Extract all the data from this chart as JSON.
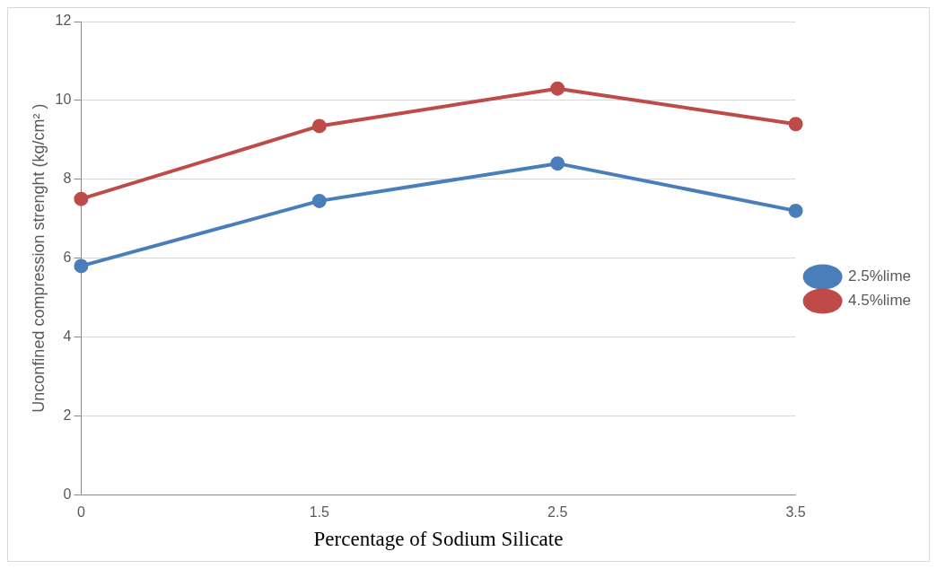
{
  "chart_data": {
    "type": "line",
    "xlabel": "Percentage of Sodium Silicate",
    "ylabel": "Unconfined compression strenght (kg/cm² )",
    "categories": [
      "0",
      "1.5",
      "2.5",
      "3.5"
    ],
    "series": [
      {
        "name": "2.5%lime",
        "color": "#4a7ebb",
        "values": [
          5.8,
          7.45,
          8.4,
          7.2
        ]
      },
      {
        "name": "4.5%lime",
        "color": "#be4b48",
        "values": [
          7.5,
          9.35,
          10.3,
          9.4
        ]
      }
    ],
    "ylim": [
      0,
      12
    ],
    "yticks": [
      0,
      2,
      4,
      6,
      8,
      10,
      12
    ],
    "grid": "y",
    "legend": "right",
    "marker": "circle"
  }
}
